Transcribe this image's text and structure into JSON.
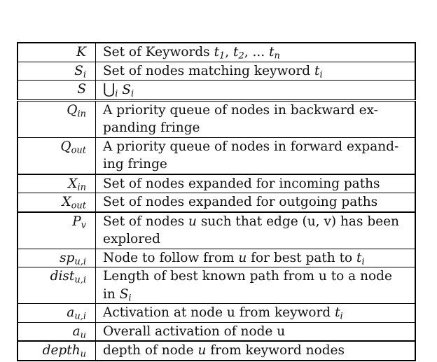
{
  "rows": [
    {
      "symbol_base": "K",
      "symbol_sub": "",
      "desc_html": "Set of Keywords <i>t</i><sub>1</sub>, <i>t</i><sub>2</sub>, ... <i>t</i><sub><i>n</i></sub>"
    },
    {
      "symbol_base": "S",
      "symbol_sub": "i",
      "desc_html": "Set of nodes matching keyword <i>t</i><sub><i>i</i></sub>"
    },
    {
      "symbol_base": "S",
      "symbol_sub": "",
      "desc_html": "<span class=\"union\">⋃</span><sub><i>i</i></sub> <i>S</i><sub><i>i</i></sub>"
    },
    {
      "symbol_base": "Q",
      "symbol_sub": "in",
      "desc_html": "A priority queue of nodes in backward ex-<br>panding fringe"
    },
    {
      "symbol_base": "Q",
      "symbol_sub": "out",
      "desc_html": "A priority queue of nodes in forward expand-<br>ing fringe"
    },
    {
      "symbol_base": "X",
      "symbol_sub": "in",
      "desc_html": "Set of nodes expanded for incoming paths"
    },
    {
      "symbol_base": "X",
      "symbol_sub": "out",
      "desc_html": "Set of nodes expanded for outgoing paths"
    },
    {
      "symbol_base": "P",
      "symbol_sub": "v",
      "desc_html": "Set of nodes <i>u</i> such that edge (u, v) has been<br>explored"
    },
    {
      "symbol_base": "sp",
      "symbol_sub": "u,i",
      "desc_html": "Node to follow from <i>u</i> for best path to <i>t</i><sub><i>i</i></sub>"
    },
    {
      "symbol_base": "dist",
      "symbol_sub": "u,i",
      "desc_html": "Length of best known path from u to a node<br>in <i>S</i><sub><i>i</i></sub>"
    },
    {
      "symbol_base": "a",
      "symbol_sub": "u,i",
      "desc_html": "Activation at node u from keyword <i>t</i><sub><i>i</i></sub>"
    },
    {
      "symbol_base": "a",
      "symbol_sub": "u",
      "desc_html": "Overall activation of node u"
    },
    {
      "symbol_base": "depth",
      "symbol_sub": "u",
      "desc_html": "depth of node <i>u</i> from keyword nodes"
    }
  ]
}
